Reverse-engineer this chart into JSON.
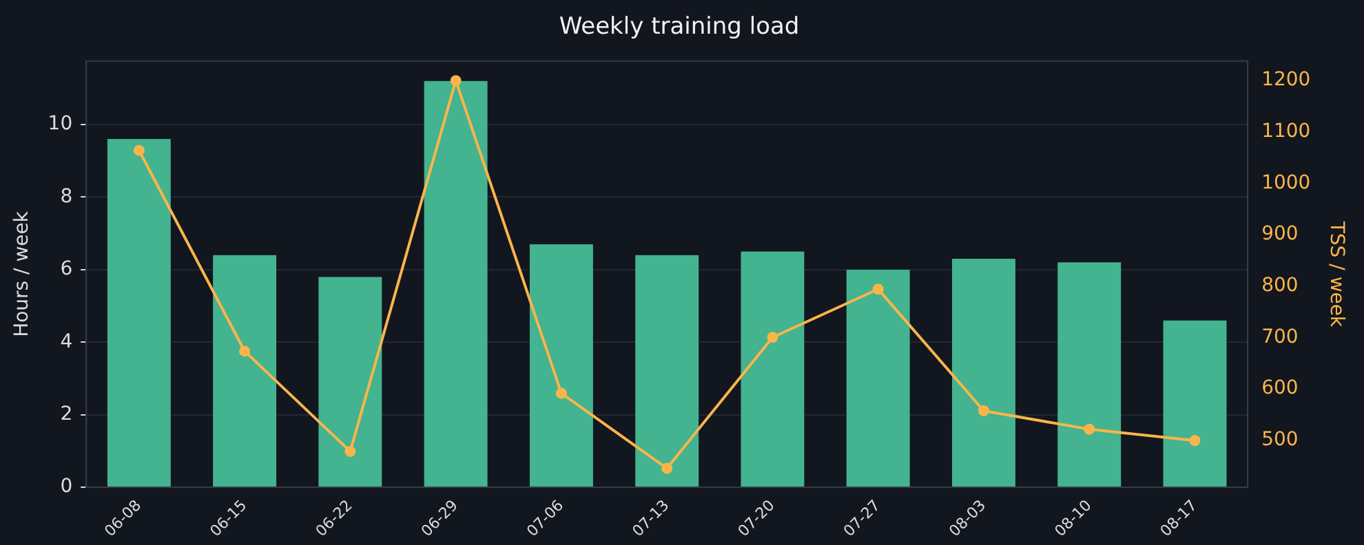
{
  "chart_data": {
    "type": "bar",
    "title": "Weekly training load",
    "ylabel": "Hours / week",
    "y2label": "TSS / week",
    "categories": [
      "06-08",
      "06-15",
      "06-22",
      "06-29",
      "07-06",
      "07-13",
      "07-20",
      "07-27",
      "08-03",
      "08-10",
      "08-17"
    ],
    "series": [
      {
        "color": "#43b390",
        "values": [
          9.6,
          6.4,
          5.8,
          11.2,
          6.7,
          6.4,
          6.5,
          6.0,
          6.3,
          6.2,
          4.6
        ]
      },
      {
        "type": "line",
        "axis": "y2",
        "color": "#f9b54a",
        "values": [
          1064,
          673,
          478,
          1200,
          591,
          445,
          700,
          794,
          557,
          521,
          499
        ]
      }
    ],
    "ylim": [
      0,
      11.75
    ],
    "yticks": [
      0,
      2,
      4,
      6,
      8,
      10
    ],
    "y2lim": [
      408,
      1238
    ],
    "y2ticks": [
      500,
      600,
      700,
      800,
      900,
      1000,
      1100,
      1200
    ],
    "grid": "y",
    "legend": false,
    "marker": "circle",
    "line_style": "solid"
  }
}
